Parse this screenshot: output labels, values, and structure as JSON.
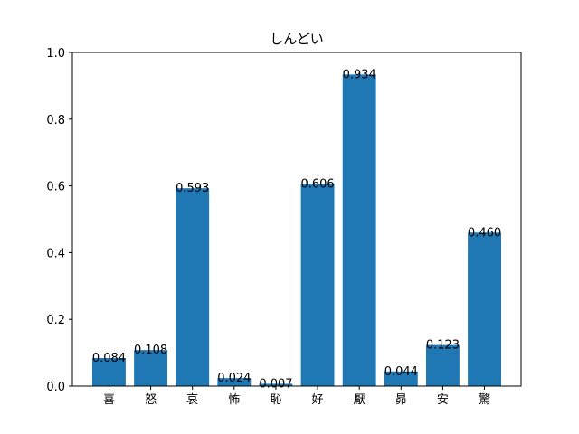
{
  "chart_data": {
    "type": "bar",
    "title": "しんどい",
    "xlabel": "",
    "ylabel": "",
    "categories": [
      "喜",
      "怒",
      "哀",
      "怖",
      "恥",
      "好",
      "厭",
      "昴",
      "安",
      "驚"
    ],
    "values": [
      0.084,
      0.108,
      0.593,
      0.024,
      0.007,
      0.606,
      0.934,
      0.044,
      0.123,
      0.46
    ],
    "value_labels": [
      "0.084",
      "0.108",
      "0.593",
      "0.024",
      "0.007",
      "0.606",
      "0.934",
      "0.044",
      "0.123",
      "0.460"
    ],
    "ylim": [
      0,
      1.0
    ],
    "yticks": [
      0.0,
      0.2,
      0.4,
      0.6,
      0.8,
      1.0
    ],
    "ytick_labels": [
      "0.0",
      "0.2",
      "0.4",
      "0.6",
      "0.8",
      "1.0"
    ],
    "bar_color": "#1f77b4",
    "grid": false,
    "legend": "none"
  }
}
